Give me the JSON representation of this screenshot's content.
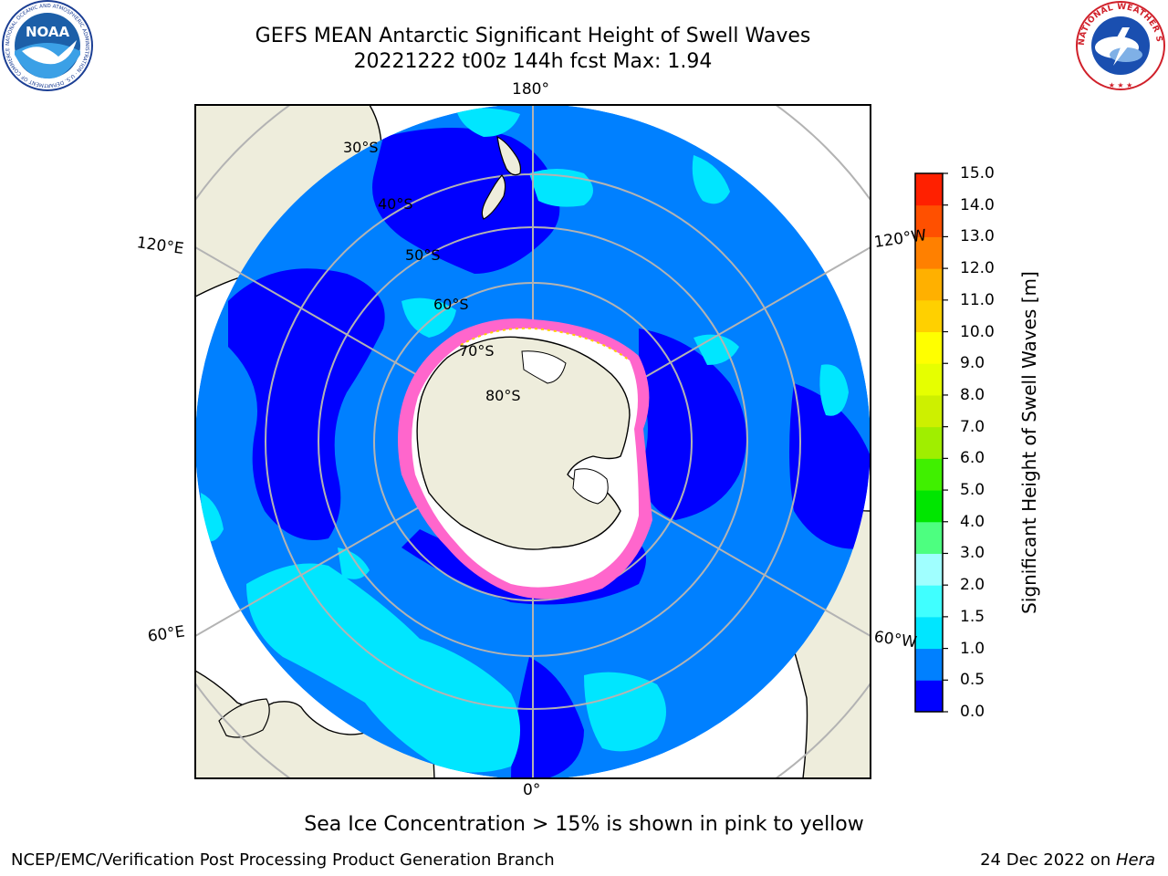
{
  "header": {
    "title_line1": "GEFS MEAN Antarctic Significant Height of Swell Waves",
    "title_line2": "20221222 t00z 144h fcst   Max: 1.94"
  },
  "map": {
    "projection": "south polar stereographic",
    "lon_labels": {
      "top": "180°",
      "bottom": "0°",
      "left_upper": "120°E",
      "left_lower": "60°E",
      "right_upper": "120°W",
      "right_lower": "60°W"
    },
    "lat_labels": [
      "30°S",
      "40°S",
      "50°S",
      "60°S",
      "70°S",
      "80°S"
    ],
    "colors": {
      "land": "#eeeddc",
      "grid": "#b3b3b3",
      "ice_pink": "#ff66cc",
      "ice_white": "#ffffff"
    }
  },
  "colorbar": {
    "label": "Significant Height of Swell Waves [m]",
    "ticks": [
      "0.0",
      "0.5",
      "1.0",
      "1.5",
      "2.0",
      "3.0",
      "4.0",
      "5.0",
      "6.0",
      "7.0",
      "8.0",
      "9.0",
      "10.0",
      "11.0",
      "12.0",
      "13.0",
      "14.0",
      "15.0"
    ],
    "colors": [
      "#0000ff",
      "#0080ff",
      "#00e6ff",
      "#40ffff",
      "#a0ffff",
      "#4dff80",
      "#00e600",
      "#40f000",
      "#a0ee00",
      "#cdf000",
      "#e6ff00",
      "#ffff00",
      "#ffd000",
      "#ffb000",
      "#ff8000",
      "#ff5000",
      "#ff2000"
    ]
  },
  "caption": "Sea Ice Concentration > 15% is shown in pink to yellow",
  "footer": {
    "left": "NCEP/EMC/Verification Post Processing Product Generation Branch",
    "right_prefix": "24 Dec 2022 on ",
    "right_machine": "Hera"
  },
  "logos": {
    "noaa_text": "NOAA",
    "noaa_ring": "NATIONAL OCEANIC AND ATMOSPHERIC ADMINISTRATION · U.S. DEPARTMENT OF COMMERCE",
    "nws_ring": "NATIONAL WEATHER SERVICE"
  }
}
